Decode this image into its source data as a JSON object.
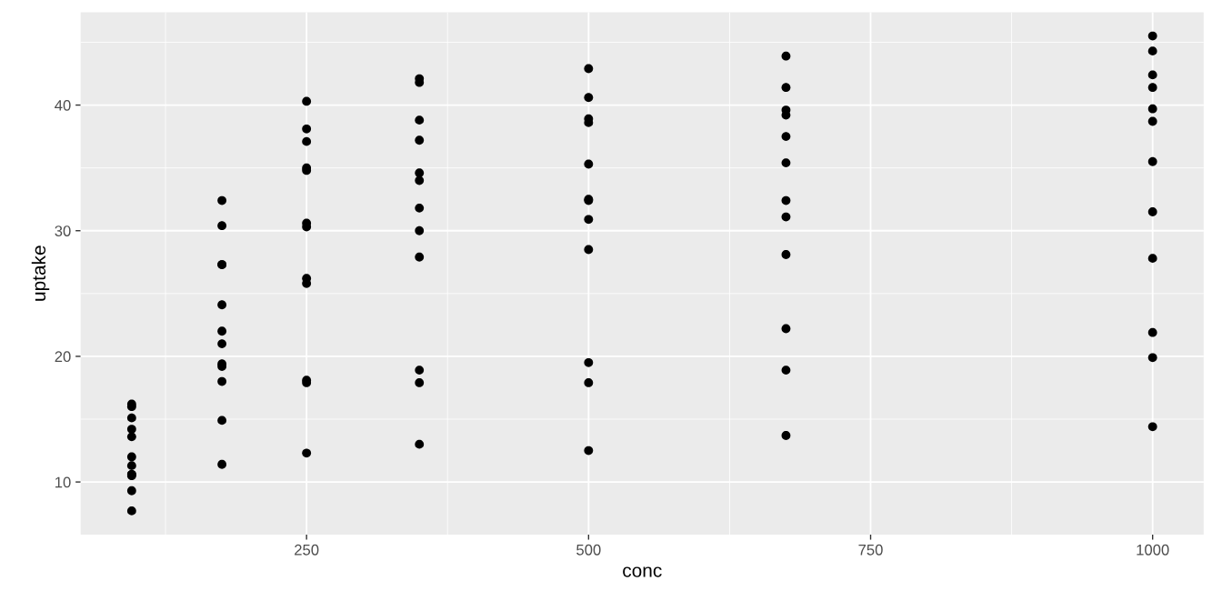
{
  "chart_data": {
    "type": "scatter",
    "xlabel": "conc",
    "ylabel": "uptake",
    "x": [
      95,
      175,
      250,
      350,
      500,
      675,
      1000,
      95,
      175,
      250,
      350,
      500,
      675,
      1000,
      95,
      175,
      250,
      350,
      500,
      675,
      1000,
      95,
      175,
      250,
      350,
      500,
      675,
      1000,
      95,
      175,
      250,
      350,
      500,
      675,
      1000,
      95,
      175,
      250,
      350,
      500,
      675,
      1000,
      95,
      175,
      250,
      350,
      500,
      675,
      1000,
      95,
      175,
      250,
      350,
      500,
      675,
      1000,
      95,
      175,
      250,
      350,
      500,
      675,
      1000,
      95,
      175,
      250,
      350,
      500,
      675,
      1000,
      95,
      175,
      250,
      350,
      500,
      675,
      1000,
      95,
      175,
      250,
      350,
      500,
      675,
      1000
    ],
    "series": [
      {
        "color": "#000000",
        "values": [
          16.0,
          30.4,
          34.8,
          37.2,
          35.3,
          39.2,
          39.7,
          13.6,
          27.3,
          37.1,
          41.8,
          40.6,
          41.4,
          44.3,
          16.2,
          32.4,
          40.3,
          42.1,
          42.9,
          43.9,
          45.5,
          14.2,
          24.1,
          30.3,
          34.6,
          32.5,
          35.4,
          38.7,
          15.1,
          21.0,
          38.1,
          34.0,
          38.9,
          39.6,
          41.4,
          9.3,
          27.3,
          35.0,
          38.8,
          38.6,
          37.5,
          42.4,
          11.3,
          19.4,
          25.8,
          27.9,
          28.5,
          28.1,
          27.8,
          12.0,
          22.0,
          30.6,
          31.8,
          32.4,
          31.1,
          31.5,
          10.6,
          19.2,
          26.2,
          30.0,
          30.9,
          32.4,
          35.5,
          7.7,
          11.4,
          12.3,
          13.0,
          12.5,
          13.7,
          14.4,
          10.6,
          18.0,
          17.9,
          17.9,
          17.9,
          18.9,
          19.9,
          10.5,
          14.9,
          18.1,
          18.9,
          19.5,
          22.2,
          21.9
        ]
      }
    ],
    "xlim": [
      49.75,
      1045.25
    ],
    "xticks": [
      250,
      500,
      750,
      1000
    ],
    "ylim": [
      5.81,
      47.39
    ],
    "yticks": [
      10,
      20,
      30,
      40
    ],
    "grid": true,
    "marker": "circle"
  }
}
